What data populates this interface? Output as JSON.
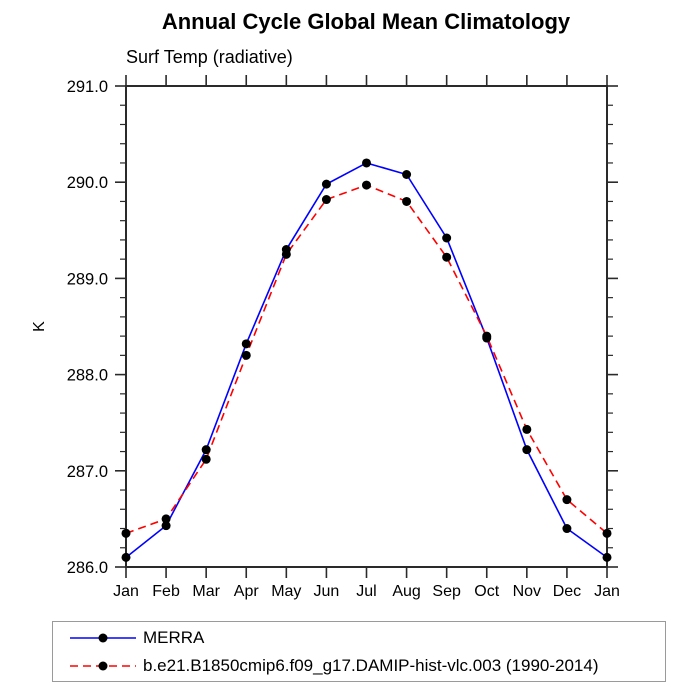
{
  "chart_data": {
    "type": "line",
    "title": "Annual Cycle Global Mean Climatology",
    "subtitle": "Surf Temp (radiative)",
    "ylabel": "K",
    "xlabel": "",
    "x_categories": [
      "Jan",
      "Feb",
      "Mar",
      "Apr",
      "May",
      "Jun",
      "Jul",
      "Aug",
      "Sep",
      "Oct",
      "Nov",
      "Dec",
      "Jan"
    ],
    "ylim": [
      286.0,
      291.0
    ],
    "ytick_interval": 1.0,
    "yminor_interval": 0.2,
    "ytick_labels": [
      "286.0",
      "287.0",
      "288.0",
      "289.0",
      "290.0",
      "291.0"
    ],
    "grid": false,
    "legend_position": "bottom",
    "axis_color": "#2a2a2a",
    "marker_color": "#000000",
    "series": [
      {
        "name": "MERRA",
        "color": "#0000ff",
        "line_style": "solid",
        "marker": "filled-circle",
        "values": [
          286.1,
          286.43,
          287.22,
          288.32,
          289.3,
          289.98,
          290.2,
          290.08,
          289.42,
          288.38,
          287.22,
          286.4,
          286.1
        ]
      },
      {
        "name": "b.e21.B1850cmip6.f09_g17.DAMIP-hist-vlc.003 (1990-2014)",
        "color": "#ff0000",
        "line_style": "dashed",
        "marker": "filled-circle",
        "values": [
          286.35,
          286.5,
          287.12,
          288.2,
          289.25,
          289.82,
          289.97,
          289.8,
          289.22,
          288.4,
          287.43,
          286.7,
          286.35
        ]
      }
    ]
  }
}
